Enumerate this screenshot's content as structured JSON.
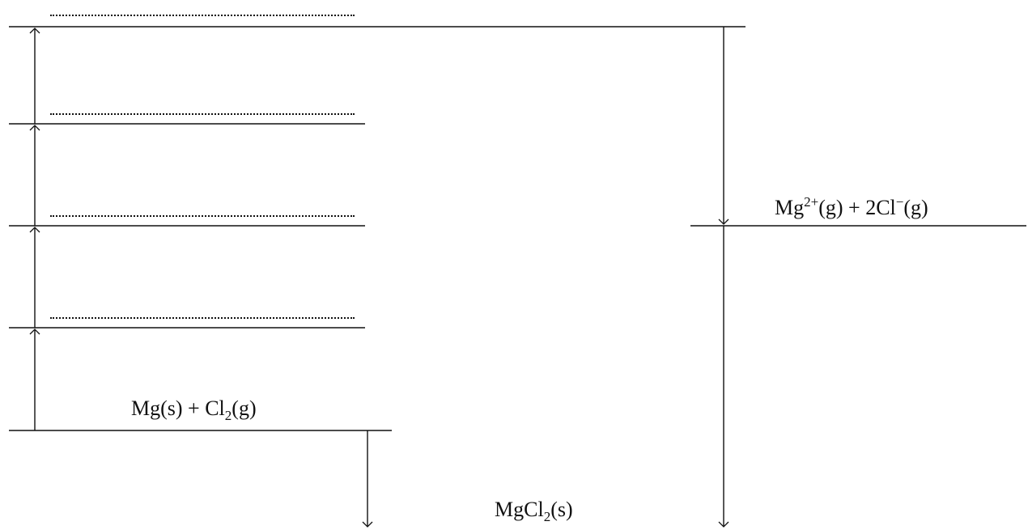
{
  "diagram": {
    "labels": {
      "reactants": {
        "parts": [
          "Mg(s) + Cl",
          "2",
          "(g)"
        ]
      },
      "gaseous_ions": {
        "parts": [
          "Mg",
          "2+",
          "(g) + 2Cl",
          "−",
          "(g)"
        ]
      },
      "product": {
        "parts": [
          "MgCl",
          "2",
          "(s)"
        ]
      }
    },
    "blank_answer_lines": 4,
    "line_color": "#111111"
  }
}
